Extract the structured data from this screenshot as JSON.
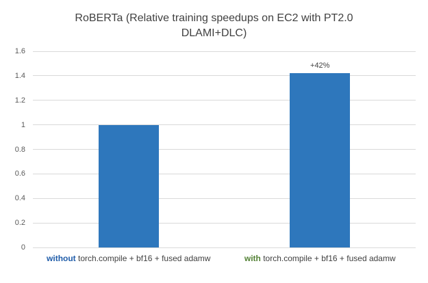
{
  "title_display": {
    "line1": "RoBERTa (Relative training speedups on EC2 with PT2.0",
    "line2": "DLAMI+DLC)"
  },
  "chart_data": {
    "type": "bar",
    "title": "RoBERTa (Relative training speedups on EC2 with PT2.0 DLAMI+DLC)",
    "categories": [
      "without torch.compile + bf16 + fused adamw",
      "with torch.compile + bf16 + fused adamw"
    ],
    "category_rich": [
      {
        "prefix": "without",
        "prefix_color": "#1F5CA9",
        "rest": " torch.compile + bf16 + fused adamw"
      },
      {
        "prefix": "with",
        "prefix_color": "#538135",
        "rest": " torch.compile + bf16 + fused adamw"
      }
    ],
    "values": [
      1.0,
      1.42
    ],
    "bar_labels": [
      "",
      "+42%"
    ],
    "bar_color": "#2E77BC",
    "xlabel": "",
    "ylabel": "",
    "ylim": [
      0,
      1.6
    ],
    "yticks": [
      0,
      0.2,
      0.4,
      0.6,
      0.8,
      1,
      1.2,
      1.4,
      1.6
    ],
    "ytick_labels": [
      "0",
      "0.2",
      "0.4",
      "0.6",
      "0.8",
      "1",
      "1.2",
      "1.4",
      "1.6"
    ],
    "grid": true,
    "legend": false
  },
  "colors": {
    "title_text": "#404040",
    "axis_text": "#595959",
    "gridline": "#D9D9D9",
    "annotation_text": "#404040",
    "background": "#FFFFFF"
  }
}
